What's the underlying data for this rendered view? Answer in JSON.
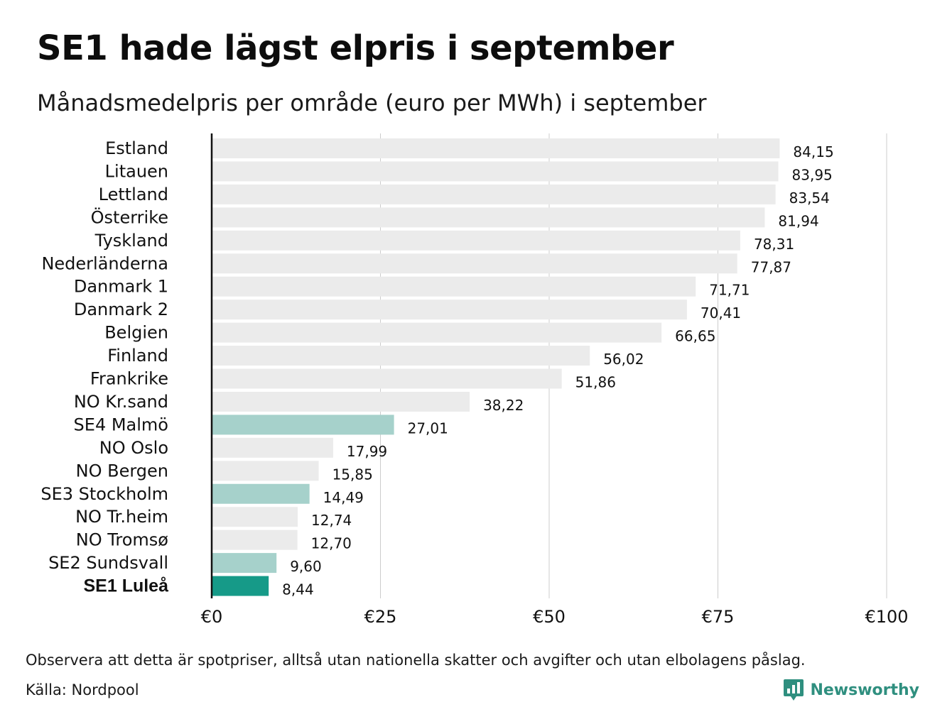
{
  "header": {
    "title": "SE1 hade lägst elpris i september",
    "subtitle": "Månadsmedelpris per område (euro per MWh) i september"
  },
  "footer": {
    "note": "Observera att detta är spotpriser, alltså utan nationella skatter och avgifter och utan elbolagens påslag.",
    "source": "Källa: Nordpool",
    "brand": "Newsworthy",
    "brand_logo_icon": "bar-chart-speech-bubble-icon"
  },
  "colors": {
    "default_bar": "#ebebeb",
    "swedish_bar": "#a6d1cb",
    "highlight_bar": "#169a88",
    "grid": "#cccccc",
    "axis": "#111111",
    "brand": "#2f8f7f"
  },
  "chart_data": {
    "type": "bar",
    "orientation": "horizontal",
    "xlim": [
      0,
      100
    ],
    "xticks": [
      0,
      25,
      50,
      75,
      100
    ],
    "xtick_labels": [
      "€0",
      "€25",
      "€50",
      "€75",
      "€100"
    ],
    "grid": true,
    "categories": [
      "Estland",
      "Litauen",
      "Lettland",
      "Österrike",
      "Tyskland",
      "Nederländerna",
      "Danmark 1",
      "Danmark 2",
      "Belgien",
      "Finland",
      "Frankrike",
      "NO Kr.sand",
      "SE4 Malmö",
      "NO Oslo",
      "NO Bergen",
      "SE3 Stockholm",
      "NO Tr.heim",
      "NO Tromsø",
      "SE2 Sundsvall",
      "SE1 Luleå"
    ],
    "values": [
      84.15,
      83.95,
      83.54,
      81.94,
      78.31,
      77.87,
      71.71,
      70.41,
      66.65,
      56.02,
      51.86,
      38.22,
      27.01,
      17.99,
      15.85,
      14.49,
      12.74,
      12.7,
      9.6,
      8.44
    ],
    "value_labels": [
      "84,15",
      "83,95",
      "83,54",
      "81,94",
      "78,31",
      "77,87",
      "71,71",
      "70,41",
      "66,65",
      "56,02",
      "51,86",
      "38,22",
      "27,01",
      "17,99",
      "15,85",
      "14,49",
      "12,74",
      "12,70",
      "9,60",
      "8,44"
    ],
    "swedish_categories": [
      "SE4 Malmö",
      "SE3 Stockholm",
      "SE2 Sundsvall"
    ],
    "highlight_category": "SE1 Luleå"
  }
}
